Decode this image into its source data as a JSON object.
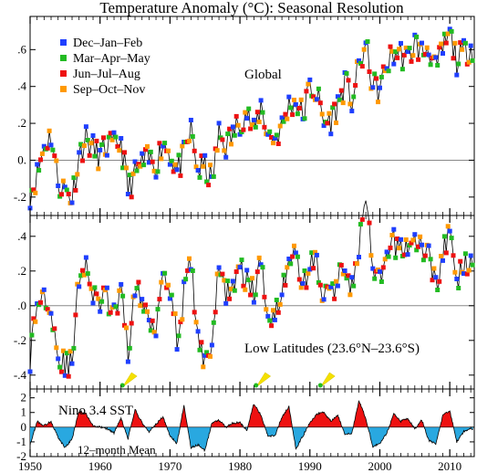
{
  "chart_data": [
    {
      "type": "line",
      "title": "Temperature Anomaly (°C): Seasonal Resolution",
      "panel_label": "Global",
      "x_range": [
        1950,
        2013.5
      ],
      "ylim": [
        -0.3,
        0.78
      ],
      "y_ticks": [
        -0.2,
        0.0,
        0.2,
        0.4,
        0.6
      ],
      "y_tick_labels": [
        "-.2",
        "0.",
        ".2",
        ".4",
        ".6"
      ],
      "zero_line": true,
      "legend_position": "top-left",
      "legend": [
        {
          "label": "Dec–Jan–Feb",
          "color": "#1f3fff"
        },
        {
          "label": "Mar–Apr–May",
          "color": "#22bb22"
        },
        {
          "label": "Jun–Jul–Aug",
          "color": "#ee1111"
        },
        {
          "label": "Sep–Oct–Nov",
          "color": "#ff9900"
        }
      ],
      "series": [
        {
          "name": "Global seasonal anomaly",
          "anchors": [
            [
              1950,
              -0.18
            ],
            [
              1951,
              -0.08
            ],
            [
              1952,
              0.08
            ],
            [
              1953,
              0.14
            ],
            [
              1954,
              -0.12
            ],
            [
              1955,
              -0.16
            ],
            [
              1956,
              -0.2
            ],
            [
              1957,
              0.03
            ],
            [
              1958,
              0.12
            ],
            [
              1959,
              0.06
            ],
            [
              1960,
              0.02
            ],
            [
              1961,
              0.08
            ],
            [
              1962,
              0.07
            ],
            [
              1963,
              0.1
            ],
            [
              1964,
              -0.16
            ],
            [
              1965,
              -0.08
            ],
            [
              1966,
              -0.02
            ],
            [
              1967,
              0.0
            ],
            [
              1968,
              -0.02
            ],
            [
              1969,
              0.1
            ],
            [
              1970,
              0.04
            ],
            [
              1971,
              -0.06
            ],
            [
              1972,
              0.02
            ],
            [
              1973,
              0.16
            ],
            [
              1974,
              -0.06
            ],
            [
              1975,
              -0.04
            ],
            [
              1976,
              -0.12
            ],
            [
              1977,
              0.14
            ],
            [
              1978,
              0.08
            ],
            [
              1979,
              0.14
            ],
            [
              1980,
              0.22
            ],
            [
              1981,
              0.26
            ],
            [
              1982,
              0.14
            ],
            [
              1983,
              0.3
            ],
            [
              1984,
              0.14
            ],
            [
              1985,
              0.12
            ],
            [
              1986,
              0.18
            ],
            [
              1987,
              0.3
            ],
            [
              1988,
              0.32
            ],
            [
              1989,
              0.24
            ],
            [
              1990,
              0.4
            ],
            [
              1991,
              0.36
            ],
            [
              1992,
              0.2
            ],
            [
              1993,
              0.22
            ],
            [
              1994,
              0.3
            ],
            [
              1995,
              0.42
            ],
            [
              1996,
              0.32
            ],
            [
              1997,
              0.5
            ],
            [
              1998,
              0.62
            ],
            [
              1999,
              0.4
            ],
            [
              2000,
              0.38
            ],
            [
              2001,
              0.52
            ],
            [
              2002,
              0.58
            ],
            [
              2003,
              0.58
            ],
            [
              2004,
              0.54
            ],
            [
              2005,
              0.64
            ],
            [
              2006,
              0.58
            ],
            [
              2007,
              0.62
            ],
            [
              2008,
              0.48
            ],
            [
              2009,
              0.6
            ],
            [
              2010,
              0.68
            ],
            [
              2011,
              0.54
            ],
            [
              2012,
              0.58
            ],
            [
              2013,
              0.62
            ]
          ]
        }
      ]
    },
    {
      "type": "line",
      "panel_label": "Low Latitudes (23.6°N–23.6°S)",
      "x_range": [
        1950,
        2013.5
      ],
      "ylim": [
        -0.48,
        0.52
      ],
      "y_ticks": [
        -0.4,
        -0.2,
        0.0,
        0.2,
        0.4
      ],
      "y_tick_labels": [
        "-.4",
        "-.2",
        ".0",
        ".2",
        ".4"
      ],
      "zero_line": true,
      "volcano_markers": [
        1963.2,
        1982.3,
        1991.5
      ],
      "series": [
        {
          "name": "Low latitude seasonal anomaly",
          "anchors": [
            [
              1950,
              -0.3
            ],
            [
              1951,
              0.02
            ],
            [
              1952,
              0.06
            ],
            [
              1953,
              0.02
            ],
            [
              1954,
              -0.3
            ],
            [
              1955,
              -0.34
            ],
            [
              1956,
              -0.34
            ],
            [
              1957,
              0.18
            ],
            [
              1958,
              0.26
            ],
            [
              1959,
              0.04
            ],
            [
              1960,
              0.02
            ],
            [
              1961,
              0.04
            ],
            [
              1962,
              -0.06
            ],
            [
              1963,
              0.06
            ],
            [
              1964,
              -0.26
            ],
            [
              1965,
              0.1
            ],
            [
              1966,
              0.02
            ],
            [
              1967,
              -0.08
            ],
            [
              1968,
              -0.1
            ],
            [
              1969,
              0.22
            ],
            [
              1970,
              0.12
            ],
            [
              1971,
              -0.2
            ],
            [
              1972,
              0.06
            ],
            [
              1973,
              0.26
            ],
            [
              1974,
              -0.22
            ],
            [
              1975,
              -0.3
            ],
            [
              1976,
              -0.22
            ],
            [
              1977,
              0.22
            ],
            [
              1978,
              0.08
            ],
            [
              1979,
              0.12
            ],
            [
              1980,
              0.2
            ],
            [
              1981,
              0.16
            ],
            [
              1982,
              0.06
            ],
            [
              1983,
              0.26
            ],
            [
              1984,
              -0.06
            ],
            [
              1985,
              -0.02
            ],
            [
              1986,
              0.06
            ],
            [
              1987,
              0.3
            ],
            [
              1988,
              0.28
            ],
            [
              1989,
              0.1
            ],
            [
              1990,
              0.26
            ],
            [
              1991,
              0.24
            ],
            [
              1992,
              0.04
            ],
            [
              1993,
              0.08
            ],
            [
              1994,
              0.14
            ],
            [
              1995,
              0.26
            ],
            [
              1996,
              0.1
            ],
            [
              1997,
              0.32
            ],
            [
              1998,
              0.62
            ],
            [
              1999,
              0.2
            ],
            [
              2000,
              0.12
            ],
            [
              2001,
              0.28
            ],
            [
              2002,
              0.36
            ],
            [
              2003,
              0.34
            ],
            [
              2004,
              0.34
            ],
            [
              2005,
              0.38
            ],
            [
              2006,
              0.32
            ],
            [
              2007,
              0.3
            ],
            [
              2008,
              0.12
            ],
            [
              2009,
              0.3
            ],
            [
              2010,
              0.42
            ],
            [
              2011,
              0.14
            ],
            [
              2012,
              0.22
            ],
            [
              2013,
              0.3
            ]
          ]
        }
      ]
    },
    {
      "type": "area",
      "panel_label": "Nino 3.4 SST",
      "note": "12–month Mean",
      "x_range": [
        1950,
        2013.5
      ],
      "ylim": [
        -2,
        2.6
      ],
      "y_ticks": [
        -2,
        -1,
        0,
        1,
        2
      ],
      "y_tick_labels": [
        "-2",
        "-1",
        "0",
        "1",
        "2"
      ],
      "positive_color": "#ee1111",
      "negative_color": "#29a8e0",
      "series": [
        {
          "name": "Nino 3.4 SST 12-month mean",
          "anchors": [
            [
              1950,
              -1.2
            ],
            [
              1951,
              0.4
            ],
            [
              1952,
              0.1
            ],
            [
              1953,
              0.4
            ],
            [
              1954,
              -0.7
            ],
            [
              1955,
              -1.4
            ],
            [
              1956,
              -0.8
            ],
            [
              1957,
              1.1
            ],
            [
              1958,
              0.9
            ],
            [
              1959,
              0.1
            ],
            [
              1960,
              0.0
            ],
            [
              1961,
              -0.1
            ],
            [
              1962,
              -0.4
            ],
            [
              1963,
              0.6
            ],
            [
              1964,
              -0.8
            ],
            [
              1965,
              1.2
            ],
            [
              1966,
              0.3
            ],
            [
              1967,
              -0.3
            ],
            [
              1968,
              0.2
            ],
            [
              1969,
              0.7
            ],
            [
              1970,
              -0.6
            ],
            [
              1971,
              -1.1
            ],
            [
              1972,
              1.5
            ],
            [
              1973,
              -1.4
            ],
            [
              1974,
              -1.2
            ],
            [
              1975,
              -1.6
            ],
            [
              1976,
              0.3
            ],
            [
              1977,
              0.5
            ],
            [
              1978,
              0.0
            ],
            [
              1979,
              0.3
            ],
            [
              1980,
              0.3
            ],
            [
              1981,
              -0.2
            ],
            [
              1982,
              1.6
            ],
            [
              1983,
              0.8
            ],
            [
              1984,
              -0.6
            ],
            [
              1985,
              -0.6
            ],
            [
              1986,
              0.7
            ],
            [
              1987,
              1.4
            ],
            [
              1988,
              -1.5
            ],
            [
              1989,
              -0.6
            ],
            [
              1990,
              0.3
            ],
            [
              1991,
              0.9
            ],
            [
              1992,
              1.0
            ],
            [
              1993,
              0.4
            ],
            [
              1994,
              0.8
            ],
            [
              1995,
              -0.5
            ],
            [
              1996,
              -0.4
            ],
            [
              1997,
              1.8
            ],
            [
              1998,
              0.6
            ],
            [
              1999,
              -1.3
            ],
            [
              2000,
              -1.1
            ],
            [
              2001,
              -0.4
            ],
            [
              2002,
              0.9
            ],
            [
              2003,
              0.4
            ],
            [
              2004,
              0.6
            ],
            [
              2005,
              -0.1
            ],
            [
              2006,
              0.5
            ],
            [
              2007,
              -0.9
            ],
            [
              2008,
              -1.1
            ],
            [
              2009,
              0.8
            ],
            [
              2010,
              1.1
            ],
            [
              2011,
              -1.0
            ],
            [
              2012,
              -0.3
            ],
            [
              2013,
              -0.1
            ]
          ]
        }
      ]
    }
  ],
  "x_axis": {
    "ticks": [
      1950,
      1960,
      1970,
      1980,
      1990,
      2000,
      2010
    ],
    "tick_labels": [
      "1950",
      "1960",
      "1970",
      "1980",
      "1990",
      "2000",
      "2010"
    ]
  }
}
